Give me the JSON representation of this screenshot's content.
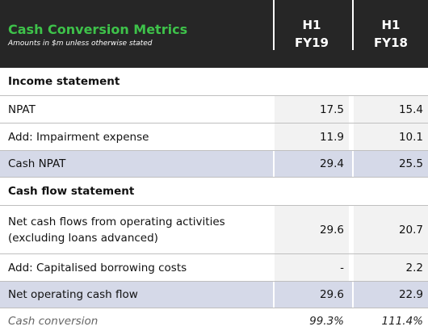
{
  "header": {
    "title": "Cash Conversion Metrics",
    "subtitle": "Amounts in $m unless otherwise stated",
    "columns": [
      [
        "H1",
        "FY19"
      ],
      [
        "H1",
        "FY18"
      ]
    ]
  },
  "table": {
    "rows": [
      {
        "style": "section",
        "label": [
          "Income statement"
        ],
        "values": []
      },
      {
        "style": "normal",
        "label": [
          "NPAT"
        ],
        "values": [
          "17.5",
          "15.4"
        ]
      },
      {
        "style": "normal",
        "label": [
          "Add: Impairment expense"
        ],
        "values": [
          "11.9",
          "10.1"
        ]
      },
      {
        "style": "highlight",
        "label": [
          "Cash NPAT"
        ],
        "values": [
          "29.4",
          "25.5"
        ]
      },
      {
        "style": "section",
        "label": [
          "Cash flow statement"
        ],
        "values": []
      },
      {
        "style": "normal",
        "label": [
          "Net cash flows from operating activities",
          "(excluding loans advanced)"
        ],
        "values": [
          "29.6",
          "20.7"
        ]
      },
      {
        "style": "normal",
        "label": [
          "Add: Capitalised borrowing costs"
        ],
        "values": [
          "-",
          "2.2"
        ]
      },
      {
        "style": "highlight",
        "label": [
          "Net operating cash flow"
        ],
        "values": [
          "29.6",
          "22.9"
        ]
      },
      {
        "style": "footer",
        "label": [
          "Cash conversion"
        ],
        "values": [
          "99.3%",
          "111.4%"
        ]
      }
    ]
  }
}
